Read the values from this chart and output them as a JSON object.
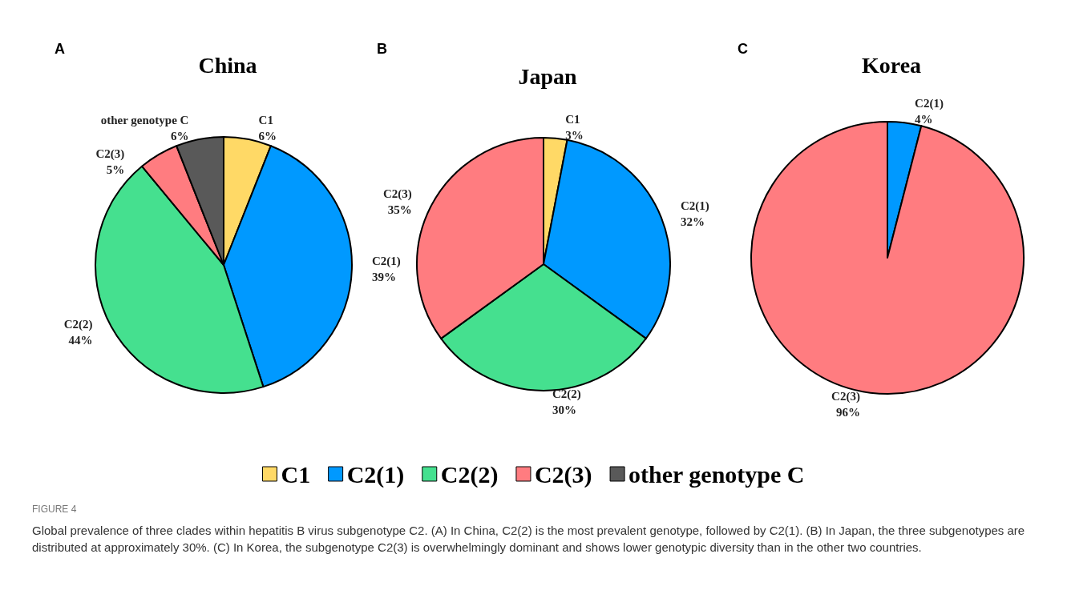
{
  "chart_data": [
    {
      "type": "pie",
      "title": "China",
      "categories": [
        "C1",
        "C2(1)",
        "C2(2)",
        "C2(3)",
        "other genotype C"
      ],
      "values": [
        6,
        39,
        44,
        5,
        6
      ],
      "value_labels": [
        "6%",
        "39%",
        "44%",
        "5%",
        "6%"
      ],
      "colors": [
        "#ffd966",
        "#0099ff",
        "#45e08f",
        "#ff7c80",
        "#595959"
      ],
      "legend": "bottom",
      "annotations": [
        "A",
        "FIGURE 4",
        "Global prevalence of three clades within hepatitis B virus subgenotype C2. (A) In China, C2(2) is the most prevalent genotype, followed by C2(1). (B) In Japan, the three subgenotypes are distributed at approximately 30%. (C) In Korea, the subgenotype C2(3) is overwhelmingly dominant and shows lower genotypic diversity than in the other two countries."
      ]
    },
    {
      "type": "pie",
      "title": "Japan",
      "categories": [
        "C1",
        "C2(1)",
        "C2(2)",
        "C2(3)"
      ],
      "values": [
        3,
        32,
        30,
        35
      ],
      "value_labels": [
        "3%",
        "32%",
        "30%",
        "35%"
      ],
      "colors": [
        "#ffd966",
        "#0099ff",
        "#45e08f",
        "#ff7c80"
      ],
      "annotations": [
        "B"
      ]
    },
    {
      "type": "pie",
      "title": "Korea",
      "categories": [
        "C2(1)",
        "C2(3)"
      ],
      "values": [
        4,
        96
      ],
      "value_labels": [
        "4%",
        "96%"
      ],
      "colors": [
        "#0099ff",
        "#ff7c80"
      ],
      "annotations": [
        "C"
      ]
    }
  ]
}
